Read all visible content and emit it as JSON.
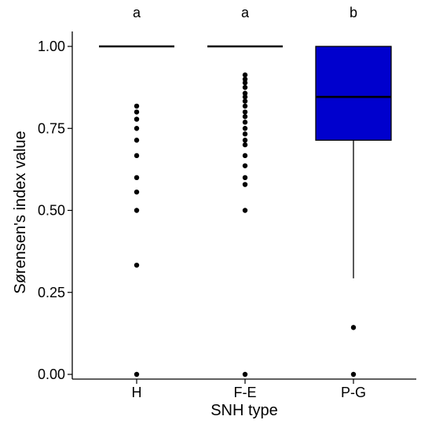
{
  "chart_data": {
    "type": "box",
    "title": "",
    "xlabel": "SNH type",
    "ylabel": "Sørensen's index value",
    "ylim": [
      0,
      1
    ],
    "yticks": [
      "0.00",
      "0.25",
      "0.50",
      "0.75",
      "1.00"
    ],
    "ytick_values": [
      0,
      0.25,
      0.5,
      0.75,
      1.0
    ],
    "grid": false,
    "categories": [
      "H",
      "F-E",
      "P-G"
    ],
    "group_letters": [
      "a",
      "a",
      "b"
    ],
    "box_fill": "#0000CD",
    "boxes": [
      {
        "category": "H",
        "q1": 1.0,
        "median": 1.0,
        "q3": 1.0,
        "whisker_low": 1.0,
        "whisker_high": 1.0,
        "outliers": [
          0.818,
          0.8,
          0.778,
          0.75,
          0.714,
          0.667,
          0.6,
          0.556,
          0.5,
          0.333,
          0.0
        ]
      },
      {
        "category": "F-E",
        "q1": 1.0,
        "median": 1.0,
        "q3": 1.0,
        "whisker_low": 1.0,
        "whisker_high": 1.0,
        "outliers": [
          0.913,
          0.9,
          0.889,
          0.875,
          0.857,
          0.846,
          0.833,
          0.818,
          0.8,
          0.786,
          0.769,
          0.75,
          0.733,
          0.714,
          0.7,
          0.667,
          0.636,
          0.6,
          0.579,
          0.5,
          0.0
        ]
      },
      {
        "category": "P-G",
        "q1": 0.714,
        "median": 0.846,
        "q3": 1.0,
        "whisker_low": 0.293,
        "whisker_high": 1.0,
        "outliers": [
          0.143,
          0.0
        ]
      }
    ]
  }
}
